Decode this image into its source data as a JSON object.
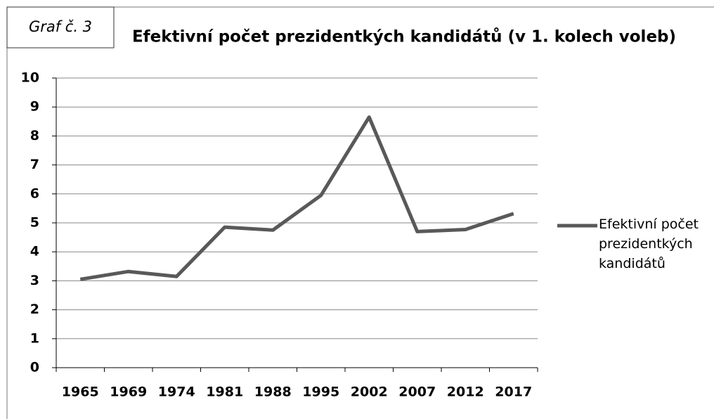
{
  "chart_data": {
    "type": "line",
    "title": "Efektivní počet prezidentkých kandidátů (v 1. kolech voleb)",
    "annotation": "Graf č. 3",
    "categories": [
      "1965",
      "1969",
      "1974",
      "1981",
      "1988",
      "1995",
      "2002",
      "2007",
      "2012",
      "2017"
    ],
    "series": [
      {
        "name": "Efektivní počet prezidentkých kandidátů",
        "color": "#595959",
        "values": [
          3.05,
          3.32,
          3.15,
          4.85,
          4.75,
          5.95,
          8.65,
          4.7,
          4.77,
          5.32
        ]
      }
    ],
    "ylim": [
      0,
      10
    ],
    "yticks": [
      0,
      1,
      2,
      3,
      4,
      5,
      6,
      7,
      8,
      9,
      10
    ],
    "grid": true,
    "legend": "right"
  }
}
